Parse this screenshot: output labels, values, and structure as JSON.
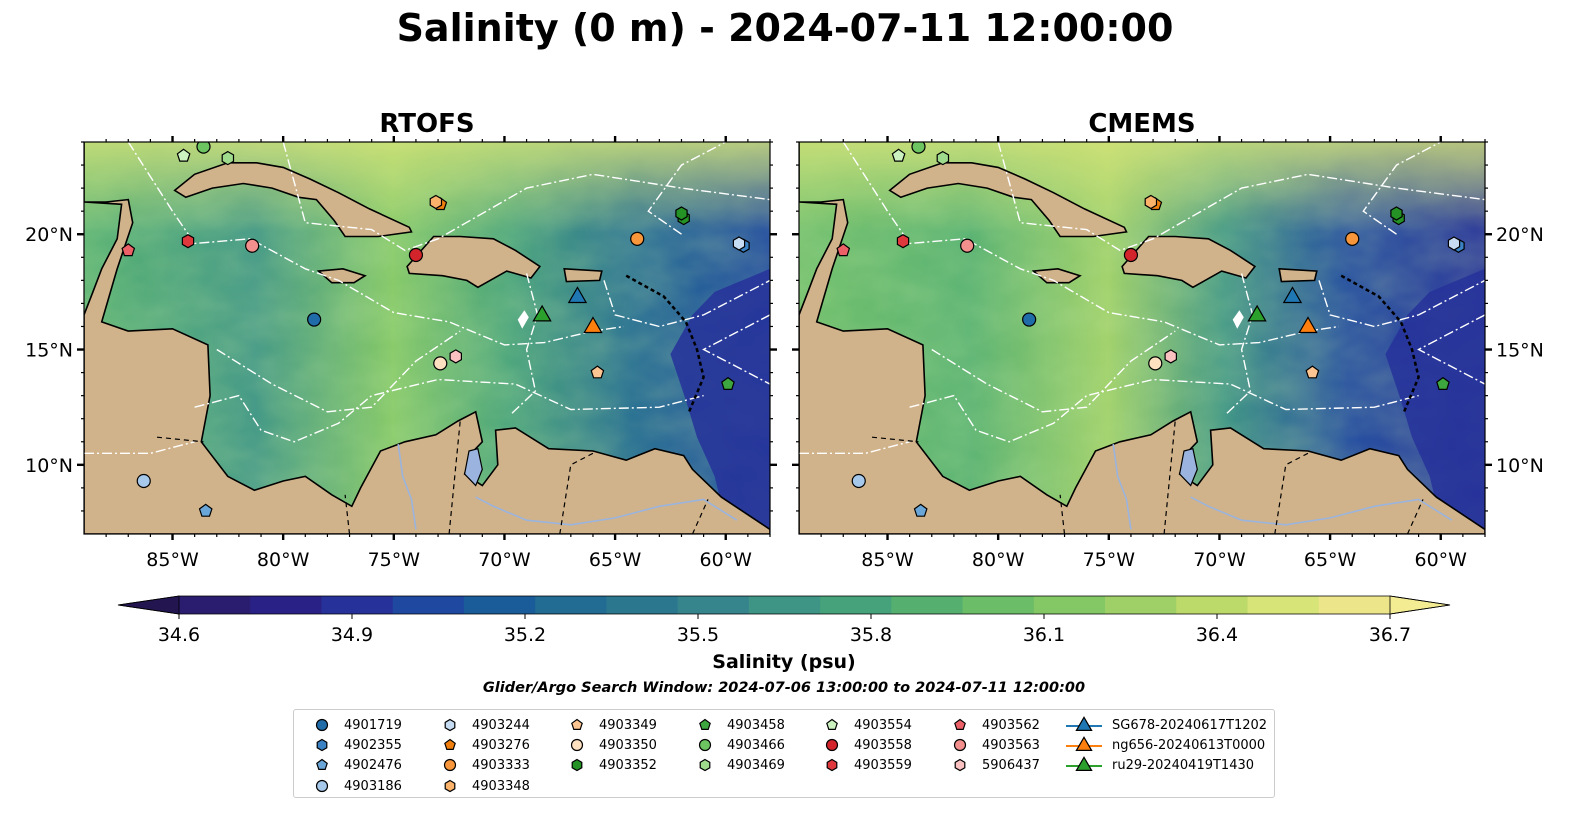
{
  "figure": {
    "title": "Salinity (0 m) - 2024-07-11 12:00:00",
    "panels": [
      {
        "title": "RTOFS"
      },
      {
        "title": "CMEMS"
      }
    ],
    "lon_ticks": [
      "85°W",
      "80°W",
      "75°W",
      "70°W",
      "65°W",
      "60°W"
    ],
    "lat_ticks": [
      "20°N",
      "15°N",
      "10°N"
    ],
    "lon_range": [
      -89,
      -58
    ],
    "lat_range": [
      7,
      24
    ],
    "colorbar": {
      "label": "Salinity (psu)",
      "tick_labels": [
        "34.6",
        "34.9",
        "35.2",
        "35.5",
        "35.8",
        "36.1",
        "36.4",
        "36.7"
      ],
      "range": [
        34.6,
        36.7
      ],
      "colors": [
        "#2a1c6e",
        "#2a2186",
        "#26319a",
        "#1f49a0",
        "#1a5c9a",
        "#226b92",
        "#2b778e",
        "#36858c",
        "#3e9585",
        "#46a27a",
        "#55b070",
        "#6cbd68",
        "#84c866",
        "#9fd067",
        "#bcda6a",
        "#d6e478",
        "#ede58a"
      ]
    },
    "search_window": "Glider/Argo Search Window: 2024-07-06 13:00:00 to 2024-07-11 12:00:00",
    "colors": {
      "land": "#d1b38b",
      "lake": "#9ab4df",
      "river": "#9ab4de"
    }
  },
  "legend": [
    {
      "label": "4901719",
      "marker": "circle",
      "color": "#1f6ca8"
    },
    {
      "label": "4902355",
      "marker": "hexagon",
      "color": "#3a82c4"
    },
    {
      "label": "4902476",
      "marker": "pentagon",
      "color": "#6aa7d8"
    },
    {
      "label": "4903186",
      "marker": "circle",
      "color": "#a6c8ea"
    },
    {
      "label": "4903244",
      "marker": "hexagon",
      "color": "#c6dcf3"
    },
    {
      "label": "4903276",
      "marker": "pentagon",
      "color": "#f07f0d"
    },
    {
      "label": "4903333",
      "marker": "circle",
      "color": "#f7963a"
    },
    {
      "label": "4903348",
      "marker": "hexagon",
      "color": "#fbb26a"
    },
    {
      "label": "4903349",
      "marker": "pentagon",
      "color": "#fcc592"
    },
    {
      "label": "4903350",
      "marker": "circle",
      "color": "#fde0c0"
    },
    {
      "label": "4903352",
      "marker": "hexagon",
      "color": "#259226"
    },
    {
      "label": "4903458",
      "marker": "pentagon",
      "color": "#3ea63e"
    },
    {
      "label": "4903466",
      "marker": "circle",
      "color": "#6cc560"
    },
    {
      "label": "4903469",
      "marker": "hexagon",
      "color": "#9edb8c"
    },
    {
      "label": "4903554",
      "marker": "pentagon",
      "color": "#ccf2c0"
    },
    {
      "label": "4903558",
      "marker": "circle",
      "color": "#d2242a"
    },
    {
      "label": "4903559",
      "marker": "hexagon",
      "color": "#e0393d"
    },
    {
      "label": "4903562",
      "marker": "pentagon",
      "color": "#ec6168"
    },
    {
      "label": "4903563",
      "marker": "circle",
      "color": "#f38f8c"
    },
    {
      "label": "5906437",
      "marker": "hexagon",
      "color": "#f9c1c0"
    },
    {
      "label": "SG678-20240617T1202",
      "marker": "triangle",
      "color": "#1f77b4"
    },
    {
      "label": "ng656-20240613T0000",
      "marker": "triangle",
      "color": "#ff7f0e"
    },
    {
      "label": "ru29-20240419T1430",
      "marker": "triangle",
      "color": "#2ca02c"
    }
  ],
  "markers": [
    {
      "label": "4901719",
      "lon": -78.6,
      "lat": 16.3
    },
    {
      "label": "4902355",
      "lon": -59.2,
      "lat": 19.5
    },
    {
      "label": "4902476",
      "lon": -83.5,
      "lat": 8.0
    },
    {
      "label": "4903186",
      "lon": -86.3,
      "lat": 9.3
    },
    {
      "label": "4903244",
      "lon": -59.4,
      "lat": 19.6
    },
    {
      "label": "4903276",
      "lon": -72.9,
      "lat": 21.3
    },
    {
      "label": "4903333",
      "lon": -64.0,
      "lat": 19.8
    },
    {
      "label": "4903348",
      "lon": -73.1,
      "lat": 21.4
    },
    {
      "label": "4903349",
      "lon": -65.8,
      "lat": 14.0
    },
    {
      "label": "4903350",
      "lon": -72.9,
      "lat": 14.4
    },
    {
      "label": "4903352",
      "lon": -61.9,
      "lat": 20.7
    },
    {
      "label": "4903458",
      "lon": -59.9,
      "lat": 13.5
    },
    {
      "label": "4903466",
      "lon": -83.6,
      "lat": 23.8
    },
    {
      "label": "4903469",
      "lon": -82.5,
      "lat": 23.3
    },
    {
      "label": "4903554",
      "lon": -84.5,
      "lat": 23.4
    },
    {
      "label": "4903558",
      "lon": -74.0,
      "lat": 19.1
    },
    {
      "label": "4903559",
      "lon": -84.3,
      "lat": 19.7
    },
    {
      "label": "4903562",
      "lon": -87.0,
      "lat": 19.3
    },
    {
      "label": "4903563",
      "lon": -81.4,
      "lat": 19.5
    },
    {
      "label": "5906437",
      "lon": -72.2,
      "lat": 14.7
    },
    {
      "label": "4903352",
      "lon": -62.0,
      "lat": 20.9
    }
  ],
  "gliders": [
    {
      "label": "SG678-20240617T1202",
      "lon": -66.7,
      "lat": 17.3
    },
    {
      "label": "ng656-20240613T0000",
      "lon": -66.0,
      "lat": 16.0
    },
    {
      "label": "ru29-20240419T1430",
      "lon": -68.3,
      "lat": 16.5
    }
  ]
}
